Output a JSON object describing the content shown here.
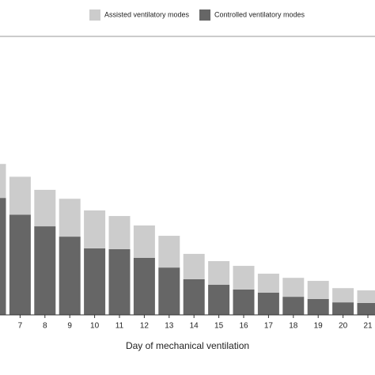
{
  "chart_data": {
    "type": "stacked_bar",
    "xlabel": "Day of mechanical ventilation",
    "categories": [
      null,
      "7",
      "8",
      "9",
      "10",
      "11",
      "12",
      "13",
      "14",
      "15",
      "16",
      "17",
      "18",
      "19",
      "20",
      "21"
    ],
    "series": [
      {
        "name": "Controlled ventilatory modes",
        "color": "#666666",
        "values": [
          42,
          36,
          31.8,
          28.1,
          23.9,
          23.6,
          20.5,
          17,
          12.8,
          10.8,
          9.1,
          8,
          6.5,
          5.7,
          4.5,
          4.3
        ]
      },
      {
        "name": "Assisted ventilatory modes",
        "color": "#cccccc",
        "values": [
          12.2,
          13.6,
          13.1,
          13.6,
          13.6,
          11.9,
          11.6,
          11.4,
          9.1,
          8.5,
          8.5,
          6.8,
          6.8,
          6.5,
          5.1,
          4.5
        ]
      }
    ],
    "ylim": [
      0,
      100
    ],
    "legend": "top"
  }
}
